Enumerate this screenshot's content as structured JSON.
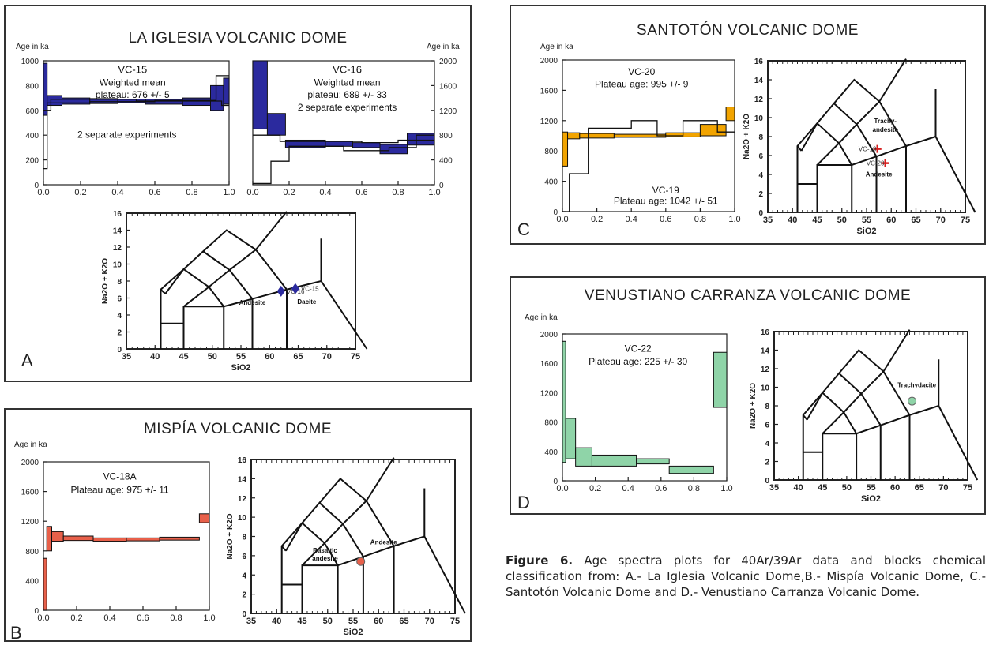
{
  "panels": {
    "A": {
      "title": "LA IGLESIA VOLCANIC DOME",
      "label": "A"
    },
    "B": {
      "title": "MISPÍA VOLCANIC DOME",
      "label": "B"
    },
    "C": {
      "title": "SANTOTÓN VOLCANIC DOME",
      "label": "C"
    },
    "D": {
      "title": "VENUSTIANO CARRANZA VOLCANIC DOME",
      "label": "D"
    }
  },
  "caption": {
    "lead": "Figure 6.",
    "text": " Age spectra plots for 40Ar/39Ar data and blocks chemical classification from: A.- La Iglesia Volcanic Dome,B.- Mispía Volcanic Dome, C.- Santotón Volcanic Dome and D.- Venustiano Carranza Volcanic Dome."
  },
  "colors": {
    "blue": "#2b2a9e",
    "red": "#e8604a",
    "orange": "#f2a400",
    "green": "#8fd4a8"
  },
  "chart_data": [
    {
      "id": "A1",
      "panel": "A",
      "type": "area",
      "ylabel": "Age in ka",
      "xlabel": "",
      "xlim": [
        0,
        1
      ],
      "ylim": [
        0,
        1000
      ],
      "xticks": [
        "0.0",
        "0.2",
        "0.4",
        "0.6",
        "0.8",
        "1.0"
      ],
      "yticks": [
        "0",
        "200",
        "400",
        "600",
        "800",
        "1000"
      ],
      "annotations": [
        "VC-15",
        "Weighted mean",
        "plateau: 676 +/- 5",
        "2 separate experiments"
      ],
      "fill": "#2b2a9e",
      "steps": [
        [
          0,
          0.02,
          560,
          980
        ],
        [
          0.02,
          0.1,
          640,
          720
        ],
        [
          0.1,
          0.25,
          650,
          700
        ],
        [
          0.25,
          0.4,
          655,
          695
        ],
        [
          0.4,
          0.55,
          660,
          690
        ],
        [
          0.55,
          0.75,
          650,
          690
        ],
        [
          0.75,
          0.9,
          640,
          700
        ],
        [
          0.9,
          0.97,
          600,
          800
        ],
        [
          0.97,
          1.0,
          650,
          860
        ]
      ],
      "lines": [
        [
          [
            0,
            130
          ],
          [
            0.02,
            130
          ],
          [
            0.02,
            660
          ],
          [
            0.25,
            660
          ],
          [
            0.25,
            670
          ],
          [
            0.6,
            670
          ],
          [
            0.6,
            680
          ],
          [
            0.93,
            680
          ],
          [
            0.93,
            880
          ],
          [
            1.0,
            880
          ]
        ],
        [
          [
            0,
            600
          ],
          [
            0.04,
            600
          ],
          [
            0.04,
            690
          ],
          [
            0.5,
            690
          ],
          [
            0.5,
            675
          ],
          [
            0.96,
            675
          ],
          [
            0.96,
            640
          ],
          [
            1.0,
            640
          ]
        ]
      ]
    },
    {
      "id": "A2",
      "panel": "A",
      "type": "area",
      "ylabel": "Age in ka",
      "xlabel": "",
      "xlim": [
        0,
        1
      ],
      "ylim": [
        0,
        2000
      ],
      "xticks": [
        "0.0",
        "0.2",
        "0.4",
        "0.6",
        "0.8",
        "1.0"
      ],
      "yticks": [
        "0",
        "400",
        "800",
        "1200",
        "1600",
        "2000"
      ],
      "annotations": [
        "VC-16",
        "Weighted mean",
        "plateau: 689 +/- 33",
        "2 separate experiments"
      ],
      "fill": "#2b2a9e",
      "steps": [
        [
          0,
          0.08,
          900,
          2000
        ],
        [
          0.08,
          0.18,
          800,
          1150
        ],
        [
          0.18,
          0.4,
          600,
          720
        ],
        [
          0.4,
          0.55,
          620,
          700
        ],
        [
          0.55,
          0.7,
          600,
          680
        ],
        [
          0.7,
          0.85,
          500,
          650
        ],
        [
          0.85,
          1.0,
          640,
          830
        ]
      ],
      "lines": [
        [
          [
            0,
            20
          ],
          [
            0.1,
            20
          ],
          [
            0.1,
            380
          ],
          [
            0.2,
            380
          ],
          [
            0.2,
            620
          ],
          [
            0.5,
            620
          ],
          [
            0.5,
            550
          ],
          [
            0.75,
            550
          ],
          [
            0.75,
            600
          ],
          [
            0.9,
            600
          ],
          [
            0.9,
            800
          ],
          [
            1.0,
            800
          ]
        ],
        [
          [
            0,
            800
          ],
          [
            0.15,
            800
          ],
          [
            0.15,
            700
          ],
          [
            0.6,
            700
          ],
          [
            0.6,
            680
          ],
          [
            0.8,
            680
          ],
          [
            0.8,
            720
          ],
          [
            1.0,
            720
          ]
        ]
      ]
    },
    {
      "id": "A3",
      "panel": "A",
      "type": "scatter",
      "xlabel": "SiO2",
      "ylabel": "Na2O + K2O",
      "xlim": [
        35,
        75
      ],
      "ylim": [
        0,
        16
      ],
      "xticks": [
        "35",
        "40",
        "45",
        "50",
        "55",
        "60",
        "65",
        "70",
        "75"
      ],
      "yticks": [
        "0",
        "2",
        "4",
        "6",
        "8",
        "10",
        "12",
        "14",
        "16"
      ],
      "points": [
        {
          "name": "VC-16",
          "x": 62,
          "y": 6.8,
          "marker": "diamond"
        },
        {
          "name": "VC-15",
          "x": 64.5,
          "y": 7.1,
          "marker": "diamond"
        }
      ],
      "field_labels": [
        "Andesite",
        "Dacite"
      ]
    },
    {
      "id": "B1",
      "panel": "B",
      "type": "area",
      "ylabel": "Age in ka",
      "xlabel": "",
      "xlim": [
        0,
        1
      ],
      "ylim": [
        0,
        2000
      ],
      "xticks": [
        "0.0",
        "0.2",
        "0.4",
        "0.6",
        "0.8",
        "1.0"
      ],
      "yticks": [
        "0",
        "400",
        "800",
        "1200",
        "1600",
        "2000"
      ],
      "annotations": [
        "VC-18A",
        "Plateau age: 975 +/- 11"
      ],
      "fill": "#e8604a",
      "steps": [
        [
          0,
          0.02,
          0,
          700
        ],
        [
          0.02,
          0.05,
          800,
          1130
        ],
        [
          0.05,
          0.12,
          930,
          1060
        ],
        [
          0.12,
          0.3,
          940,
          1000
        ],
        [
          0.3,
          0.5,
          930,
          975
        ],
        [
          0.5,
          0.7,
          935,
          975
        ],
        [
          0.7,
          0.94,
          945,
          985
        ],
        [
          0.94,
          1.0,
          1180,
          1300
        ]
      ],
      "lines": []
    },
    {
      "id": "B2",
      "panel": "B",
      "type": "scatter",
      "xlabel": "SiO2",
      "ylabel": "Na2O + K2O",
      "xlim": [
        35,
        75
      ],
      "ylim": [
        0,
        16
      ],
      "xticks": [
        "35",
        "40",
        "45",
        "50",
        "55",
        "60",
        "65",
        "70",
        "75"
      ],
      "yticks": [
        "0",
        "2",
        "4",
        "6",
        "8",
        "10",
        "12",
        "14",
        "16"
      ],
      "points": [
        {
          "name": "",
          "x": 56.5,
          "y": 5.4,
          "marker": "circle"
        }
      ],
      "field_labels": [
        "Andesite",
        "Basaltic",
        "andesite"
      ]
    },
    {
      "id": "C1",
      "panel": "C",
      "type": "area",
      "ylabel": "Age in ka",
      "xlabel": "",
      "xlim": [
        0,
        1
      ],
      "ylim": [
        0,
        2000
      ],
      "xticks": [
        "0.0",
        "0.2",
        "0.4",
        "0.6",
        "0.8",
        "1.0"
      ],
      "yticks": [
        "0",
        "400",
        "800",
        "1200",
        "1600",
        "2000"
      ],
      "annotations": [
        "VC-20",
        "Plateau age: 995 +/- 9",
        "VC-19",
        "Plateau age: 1042 +/- 51"
      ],
      "fill": "#f2a400",
      "steps": [
        [
          0,
          0.03,
          600,
          1050
        ],
        [
          0.03,
          0.1,
          960,
          1040
        ],
        [
          0.1,
          0.3,
          970,
          1030
        ],
        [
          0.3,
          0.6,
          980,
          1020
        ],
        [
          0.6,
          0.8,
          985,
          1040
        ],
        [
          0.8,
          0.95,
          1000,
          1150
        ],
        [
          0.95,
          1.0,
          1200,
          1380
        ]
      ],
      "lines": [
        [
          [
            0,
            0
          ],
          [
            0.04,
            0
          ],
          [
            0.04,
            500
          ],
          [
            0.15,
            500
          ],
          [
            0.15,
            1100
          ],
          [
            0.4,
            1100
          ],
          [
            0.4,
            1200
          ],
          [
            0.55,
            1200
          ],
          [
            0.55,
            1000
          ],
          [
            0.7,
            1000
          ],
          [
            0.7,
            1200
          ],
          [
            0.9,
            1200
          ],
          [
            0.9,
            1050
          ],
          [
            1.0,
            1050
          ]
        ]
      ]
    },
    {
      "id": "C2",
      "panel": "C",
      "type": "scatter",
      "xlabel": "SiO2",
      "ylabel": "Na2O + K2O",
      "xlim": [
        35,
        75
      ],
      "ylim": [
        0,
        16
      ],
      "xticks": [
        "35",
        "40",
        "45",
        "50",
        "55",
        "60",
        "65",
        "70",
        "75"
      ],
      "yticks": [
        "0",
        "2",
        "4",
        "6",
        "8",
        "10",
        "12",
        "14",
        "16"
      ],
      "points": [
        {
          "name": "VC-19",
          "x": 57.2,
          "y": 6.7,
          "marker": "cross"
        },
        {
          "name": "VC-20",
          "x": 58.8,
          "y": 5.2,
          "marker": "cross"
        }
      ],
      "field_labels": [
        "Trachy-",
        "andesite",
        "Andesite"
      ]
    },
    {
      "id": "D1",
      "panel": "D",
      "type": "area",
      "ylabel": "Age in ka",
      "xlabel": "",
      "xlim": [
        0,
        1
      ],
      "ylim": [
        0,
        2000
      ],
      "xticks": [
        "0.0",
        "0.2",
        "0.4",
        "0.6",
        "0.8",
        "1.0"
      ],
      "yticks": [
        "0",
        "400",
        "800",
        "1200",
        "1600",
        "2000"
      ],
      "annotations": [
        "VC-22",
        "Plateau age: 225 +/- 30"
      ],
      "fill": "#8fd4a8",
      "steps": [
        [
          0,
          0.02,
          250,
          1900
        ],
        [
          0.02,
          0.08,
          300,
          850
        ],
        [
          0.08,
          0.18,
          200,
          450
        ],
        [
          0.18,
          0.45,
          200,
          350
        ],
        [
          0.45,
          0.65,
          230,
          300
        ],
        [
          0.65,
          0.92,
          100,
          200
        ],
        [
          0.92,
          1.0,
          1000,
          1750
        ]
      ],
      "lines": []
    },
    {
      "id": "D2",
      "panel": "D",
      "type": "scatter",
      "xlabel": "SiO2",
      "ylabel": "Na2O + K2O",
      "xlim": [
        35,
        75
      ],
      "ylim": [
        0,
        16
      ],
      "xticks": [
        "35",
        "40",
        "45",
        "50",
        "55",
        "60",
        "65",
        "70",
        "75"
      ],
      "yticks": [
        "0",
        "2",
        "4",
        "6",
        "8",
        "10",
        "12",
        "14",
        "16"
      ],
      "points": [
        {
          "name": "",
          "x": 63.5,
          "y": 8.5,
          "marker": "circle"
        }
      ],
      "field_labels": [
        "Trachydacite"
      ]
    }
  ]
}
